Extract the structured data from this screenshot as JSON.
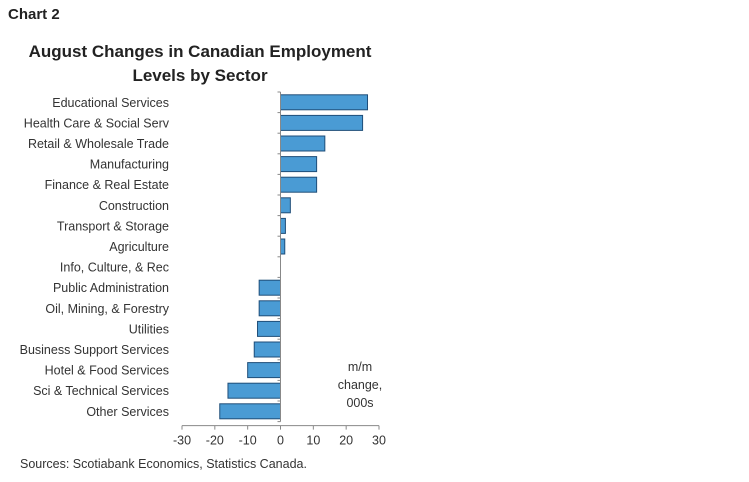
{
  "header": {
    "chart_label": "Chart 2"
  },
  "chart_data": {
    "type": "bar",
    "orientation": "horizontal",
    "title_line1": "August Changes in Canadian Employment",
    "title_line2": "Levels by Sector",
    "categories": [
      "Educational Services",
      "Health Care & Social Serv",
      "Retail & Wholesale Trade",
      "Manufacturing",
      "Finance & Real Estate",
      "Construction",
      "Transport & Storage",
      "Agriculture",
      "Info, Culture, & Rec",
      "Public Administration",
      "Oil, Mining, & Forestry",
      "Utilities",
      "Business Support Services",
      "Hotel & Food Services",
      "Sci & Technical Services",
      "Other Services"
    ],
    "values": [
      26.5,
      25,
      13.5,
      11,
      11,
      3,
      1.5,
      1.3,
      0,
      -6.5,
      -6.5,
      -7,
      -8,
      -10,
      -16,
      -18.5
    ],
    "xlim": [
      -30,
      30
    ],
    "xticks": [
      "-30",
      "-20",
      "-10",
      "0",
      "10",
      "20",
      "30"
    ],
    "annotation": [
      "m/m",
      "change,",
      "000s"
    ],
    "bar_color": "#4a9bd4",
    "bar_border": "#1f4e79"
  },
  "footer": {
    "source": "Sources: Scotiabank Economics, Statistics Canada."
  }
}
